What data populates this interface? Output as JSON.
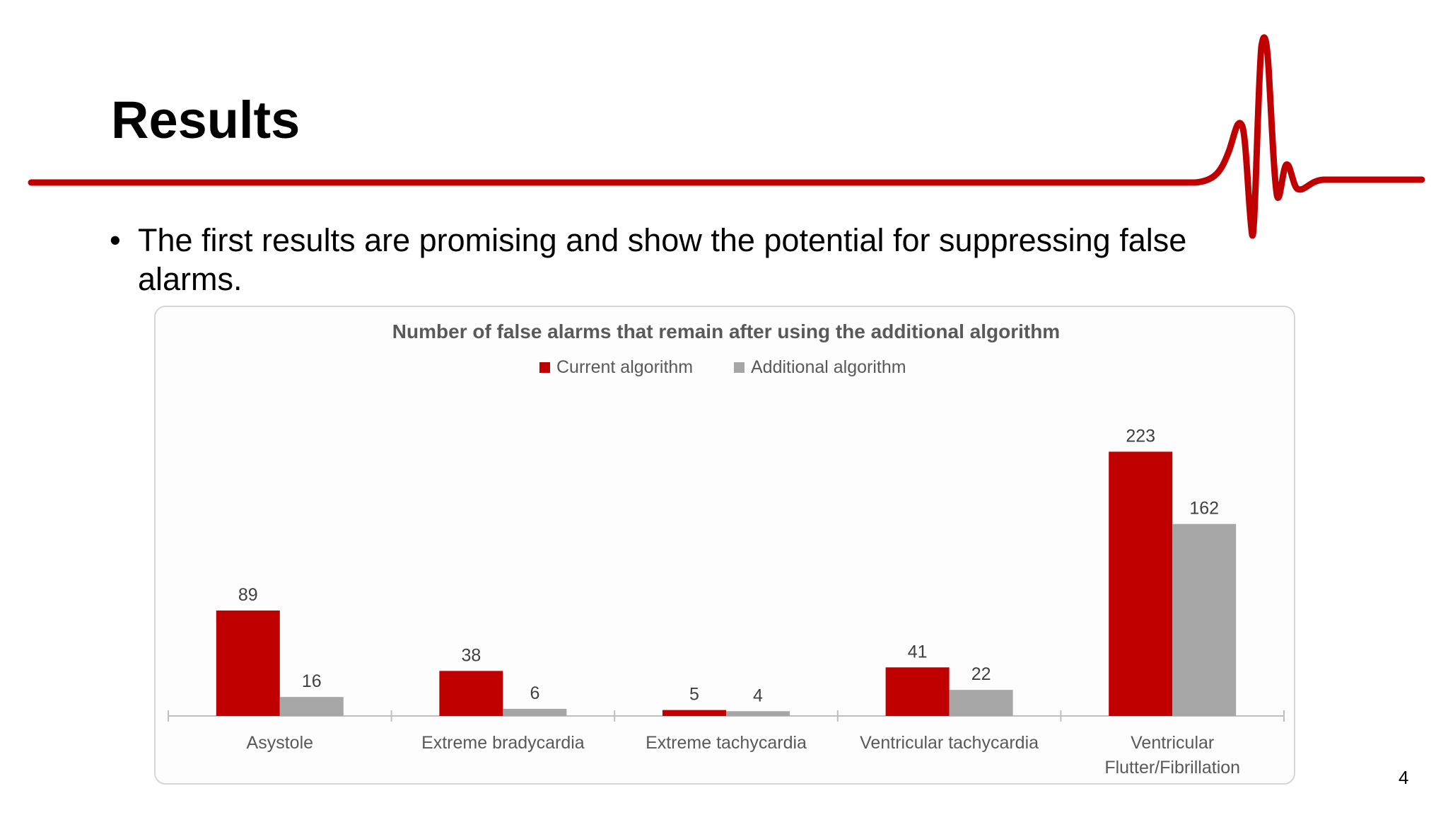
{
  "slide": {
    "title": "Results",
    "bullet_marker": "•",
    "bullet_text": "The first results are promising and show the potential for suppressing false alarms.",
    "page_number": "4",
    "accent_color": "#C00000"
  },
  "chart_data": {
    "type": "bar",
    "title": "Number of false alarms that remain after using the additional algorithm",
    "categories": [
      [
        "Asystole"
      ],
      [
        "Extreme bradycardia"
      ],
      [
        "Extreme tachycardia"
      ],
      [
        "Ventricular tachycardia"
      ],
      [
        "Ventricular",
        "Flutter/Fibrillation"
      ]
    ],
    "series": [
      {
        "name": "Current algorithm",
        "values": [
          89,
          38,
          5,
          41,
          223
        ],
        "color": "#C00000"
      },
      {
        "name": "Additional algorithm",
        "values": [
          16,
          6,
          4,
          22,
          162
        ],
        "color": "#A6A6A6"
      }
    ],
    "xlabel": "",
    "ylabel": "",
    "ylim": [
      0,
      240
    ],
    "grid": false,
    "legend": "top-center"
  }
}
